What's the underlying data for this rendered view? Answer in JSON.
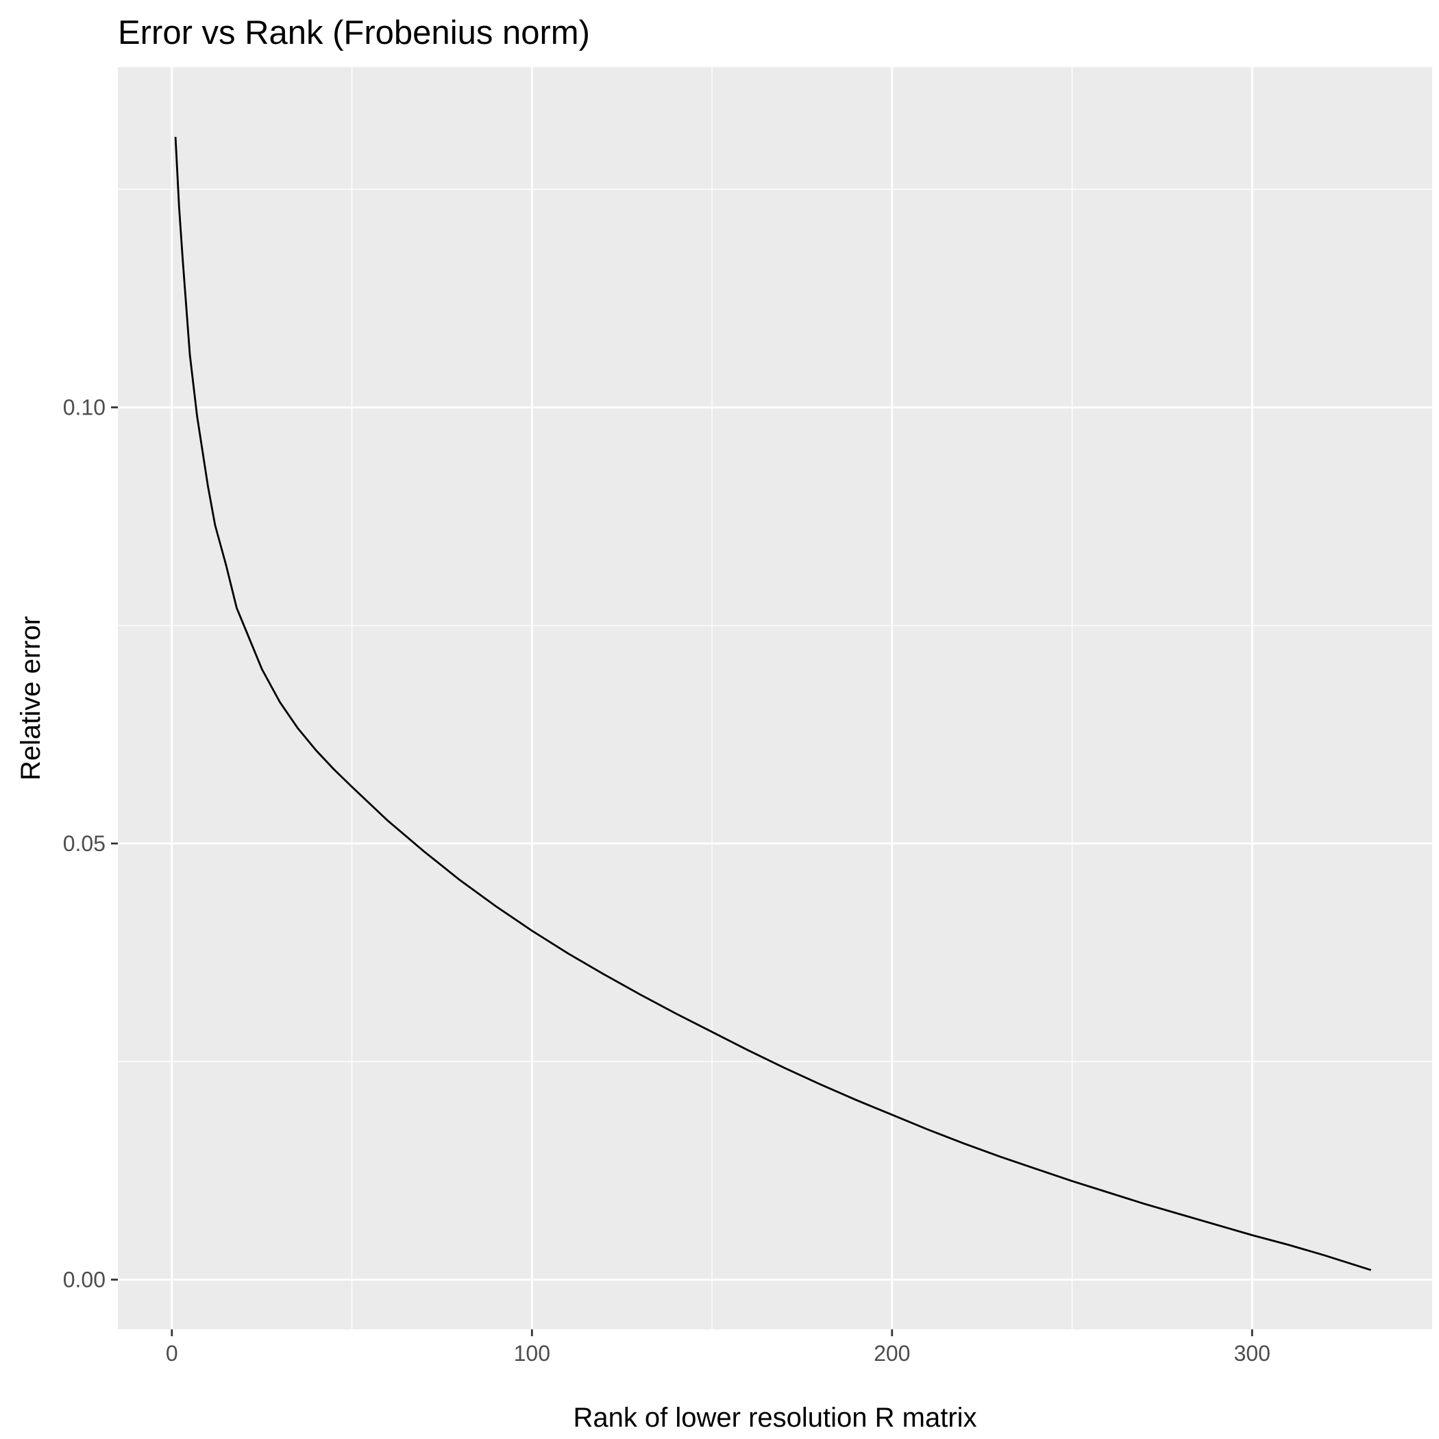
{
  "chart_data": {
    "type": "line",
    "title": "Error vs Rank (Frobenius norm)",
    "xlabel": "Rank of lower resolution R matrix",
    "ylabel": "Relative error",
    "xlim": [
      -15,
      350
    ],
    "ylim": [
      -0.0057,
      0.139
    ],
    "x_ticks": [
      {
        "value": 0,
        "label": "0"
      },
      {
        "value": 100,
        "label": "100"
      },
      {
        "value": 200,
        "label": "200"
      },
      {
        "value": 300,
        "label": "300"
      }
    ],
    "x_minor": [
      50,
      150,
      250
    ],
    "y_ticks": [
      {
        "value": 0.0,
        "label": "0.00"
      },
      {
        "value": 0.05,
        "label": "0.05"
      },
      {
        "value": 0.1,
        "label": "0.10"
      }
    ],
    "y_minor": [
      0.025,
      0.075,
      0.125
    ],
    "grid": true,
    "panel_background": "#EBEBEB",
    "grid_color": "#FFFFFF",
    "line_color": "#000000",
    "series": [
      {
        "x": [
          1,
          2,
          3,
          5,
          7,
          10,
          12,
          15,
          18,
          20,
          25,
          30,
          35,
          40,
          45,
          50,
          60,
          70,
          80,
          90,
          100,
          110,
          120,
          130,
          140,
          150,
          160,
          170,
          180,
          190,
          200,
          210,
          220,
          230,
          240,
          250,
          260,
          270,
          280,
          290,
          300,
          310,
          320,
          333
        ],
        "y": [
          0.131,
          0.123,
          0.117,
          0.106,
          0.099,
          0.091,
          0.0865,
          0.082,
          0.077,
          0.075,
          0.07,
          0.0662,
          0.0632,
          0.0607,
          0.0585,
          0.0565,
          0.0526,
          0.0491,
          0.0458,
          0.0428,
          0.04,
          0.0374,
          0.035,
          0.0327,
          0.0305,
          0.0284,
          0.0263,
          0.0243,
          0.0224,
          0.0206,
          0.0189,
          0.0172,
          0.0156,
          0.0141,
          0.0127,
          0.0113,
          0.01,
          0.0087,
          0.0075,
          0.0063,
          0.0051,
          0.004,
          0.0028,
          0.0011
        ]
      }
    ]
  }
}
